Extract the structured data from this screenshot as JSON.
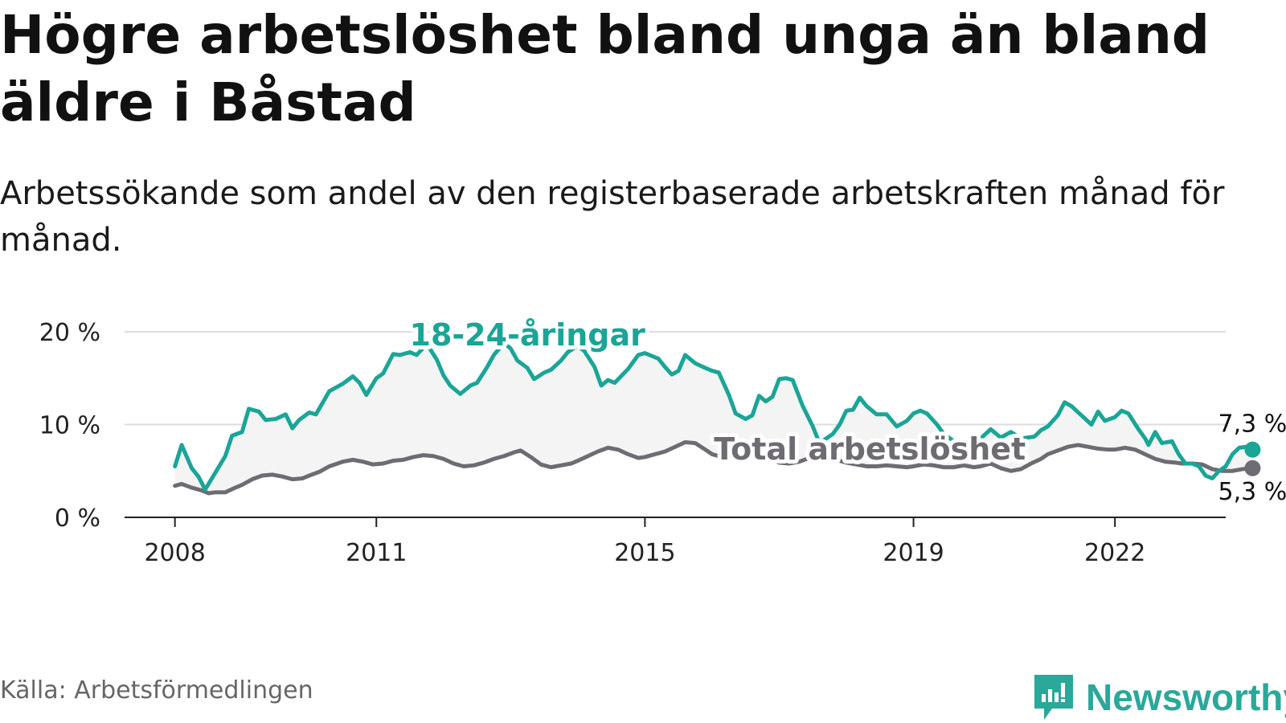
{
  "title": "Högre arbetslöshet bland unga än bland äldre i Båstad",
  "subtitle": "Arbetssökande som andel av den registerbaserade arbetskraften månad för månad.",
  "source": "Källa: Arbetsförmedlingen",
  "brand": {
    "name": "Newsworthy",
    "icon": "newsworthy-logo-icon",
    "color": "#2aa89a"
  },
  "chart_data": {
    "type": "line",
    "x_ticks": [
      {
        "value": 2008,
        "label": "2008"
      },
      {
        "value": 2011,
        "label": "2011"
      },
      {
        "value": 2015,
        "label": "2015"
      },
      {
        "value": 2019,
        "label": "2019"
      },
      {
        "value": 2022,
        "label": "2022"
      }
    ],
    "y_ticks": [
      {
        "value": 0,
        "label": "0 %"
      },
      {
        "value": 10,
        "label": "10 %"
      },
      {
        "value": 20,
        "label": "20 %"
      }
    ],
    "xlim": [
      2007.25,
      2023.65
    ],
    "ylim": [
      0,
      20
    ],
    "grid": true,
    "series": [
      {
        "name": "18-24-åringar",
        "label": "18-24-åringar",
        "color": "#1aa597",
        "end_label": "7,3 %",
        "points": [
          [
            2008.0,
            5.5
          ],
          [
            2008.1,
            7.8
          ],
          [
            2008.25,
            5.3
          ],
          [
            2008.35,
            4.4
          ],
          [
            2008.45,
            3.0
          ],
          [
            2008.6,
            4.8
          ],
          [
            2008.75,
            6.6
          ],
          [
            2008.85,
            8.8
          ],
          [
            2009.0,
            9.2
          ],
          [
            2009.1,
            11.7
          ],
          [
            2009.25,
            11.4
          ],
          [
            2009.35,
            10.5
          ],
          [
            2009.5,
            10.6
          ],
          [
            2009.65,
            11.1
          ],
          [
            2009.75,
            9.6
          ],
          [
            2009.85,
            10.5
          ],
          [
            2010.0,
            11.3
          ],
          [
            2010.1,
            11.1
          ],
          [
            2010.3,
            13.6
          ],
          [
            2010.5,
            14.4
          ],
          [
            2010.65,
            15.2
          ],
          [
            2010.75,
            14.5
          ],
          [
            2010.85,
            13.2
          ],
          [
            2011.0,
            15.0
          ],
          [
            2011.1,
            15.5
          ],
          [
            2011.25,
            17.6
          ],
          [
            2011.35,
            17.5
          ],
          [
            2011.5,
            17.8
          ],
          [
            2011.6,
            17.5
          ],
          [
            2011.75,
            18.7
          ],
          [
            2011.9,
            17.0
          ],
          [
            2012.0,
            15.3
          ],
          [
            2012.1,
            14.2
          ],
          [
            2012.25,
            13.3
          ],
          [
            2012.4,
            14.2
          ],
          [
            2012.5,
            14.5
          ],
          [
            2012.65,
            16.2
          ],
          [
            2012.75,
            17.5
          ],
          [
            2012.9,
            18.8
          ],
          [
            2013.0,
            18.2
          ],
          [
            2013.1,
            16.9
          ],
          [
            2013.25,
            16.1
          ],
          [
            2013.35,
            14.9
          ],
          [
            2013.5,
            15.6
          ],
          [
            2013.6,
            15.9
          ],
          [
            2013.75,
            16.9
          ],
          [
            2013.85,
            17.8
          ],
          [
            2014.0,
            18.5
          ],
          [
            2014.1,
            17.9
          ],
          [
            2014.25,
            16.2
          ],
          [
            2014.35,
            14.2
          ],
          [
            2014.45,
            14.8
          ],
          [
            2014.55,
            14.5
          ],
          [
            2014.75,
            16.0
          ],
          [
            2014.9,
            17.5
          ],
          [
            2015.0,
            17.7
          ],
          [
            2015.2,
            17.1
          ],
          [
            2015.3,
            16.2
          ],
          [
            2015.4,
            15.4
          ],
          [
            2015.5,
            15.8
          ],
          [
            2015.6,
            17.5
          ],
          [
            2015.75,
            16.6
          ],
          [
            2015.9,
            16.1
          ],
          [
            2016.0,
            15.8
          ],
          [
            2016.1,
            15.6
          ],
          [
            2016.25,
            13.2
          ],
          [
            2016.35,
            11.2
          ],
          [
            2016.5,
            10.6
          ],
          [
            2016.6,
            11.0
          ],
          [
            2016.7,
            13.1
          ],
          [
            2016.8,
            12.5
          ],
          [
            2016.9,
            13.0
          ],
          [
            2017.0,
            14.9
          ],
          [
            2017.1,
            15.0
          ],
          [
            2017.2,
            14.8
          ],
          [
            2017.35,
            12.0
          ],
          [
            2017.5,
            9.8
          ],
          [
            2017.6,
            8.0
          ],
          [
            2017.7,
            8.5
          ],
          [
            2017.8,
            9.0
          ],
          [
            2017.9,
            10.0
          ],
          [
            2018.0,
            11.5
          ],
          [
            2018.1,
            11.6
          ],
          [
            2018.2,
            12.9
          ],
          [
            2018.3,
            12.0
          ],
          [
            2018.45,
            11.1
          ],
          [
            2018.6,
            11.1
          ],
          [
            2018.75,
            9.8
          ],
          [
            2018.9,
            10.4
          ],
          [
            2019.0,
            11.2
          ],
          [
            2019.1,
            11.5
          ],
          [
            2019.2,
            11.2
          ],
          [
            2019.35,
            10.0
          ],
          [
            2019.45,
            9.0
          ],
          [
            2019.6,
            8.2
          ],
          [
            2019.75,
            7.8
          ],
          [
            2019.9,
            8.2
          ],
          [
            2020.0,
            8.5
          ],
          [
            2020.15,
            9.5
          ],
          [
            2020.3,
            8.6
          ],
          [
            2020.45,
            9.2
          ],
          [
            2020.6,
            8.5
          ],
          [
            2020.8,
            8.7
          ],
          [
            2020.9,
            9.4
          ],
          [
            2021.0,
            9.8
          ],
          [
            2021.15,
            11.0
          ],
          [
            2021.25,
            12.4
          ],
          [
            2021.35,
            12.0
          ],
          [
            2021.5,
            11.0
          ],
          [
            2021.65,
            10.0
          ],
          [
            2021.75,
            11.4
          ],
          [
            2021.85,
            10.4
          ],
          [
            2022.0,
            10.8
          ],
          [
            2022.1,
            11.5
          ],
          [
            2022.2,
            11.2
          ],
          [
            2022.35,
            9.5
          ],
          [
            2022.45,
            8.5
          ],
          [
            2022.5,
            7.8
          ],
          [
            2022.6,
            9.2
          ],
          [
            2022.7,
            8.0
          ],
          [
            2022.85,
            8.2
          ],
          [
            2022.95,
            6.8
          ],
          [
            2023.05,
            5.8
          ],
          [
            2023.15,
            5.8
          ],
          [
            2023.25,
            5.5
          ],
          [
            2023.35,
            4.5
          ],
          [
            2023.45,
            4.2
          ],
          [
            2023.55,
            5.0
          ],
          [
            2023.65,
            5.5
          ],
          [
            2023.75,
            6.8
          ],
          [
            2023.85,
            7.5
          ],
          [
            2023.95,
            7.6
          ],
          [
            2024.05,
            7.3
          ]
        ]
      },
      {
        "name": "Total arbetslöshet",
        "label": "Total arbetslöshet",
        "color": "#6e6b72",
        "end_label": "5,3 %",
        "points": [
          [
            2008.0,
            3.4
          ],
          [
            2008.1,
            3.6
          ],
          [
            2008.25,
            3.2
          ],
          [
            2008.4,
            2.9
          ],
          [
            2008.5,
            2.6
          ],
          [
            2008.6,
            2.7
          ],
          [
            2008.75,
            2.7
          ],
          [
            2008.9,
            3.2
          ],
          [
            2009.0,
            3.5
          ],
          [
            2009.15,
            4.1
          ],
          [
            2009.3,
            4.5
          ],
          [
            2009.45,
            4.6
          ],
          [
            2009.6,
            4.4
          ],
          [
            2009.75,
            4.1
          ],
          [
            2009.9,
            4.2
          ],
          [
            2010.0,
            4.5
          ],
          [
            2010.15,
            4.9
          ],
          [
            2010.3,
            5.5
          ],
          [
            2010.5,
            6.0
          ],
          [
            2010.65,
            6.2
          ],
          [
            2010.8,
            6.0
          ],
          [
            2010.95,
            5.7
          ],
          [
            2011.1,
            5.8
          ],
          [
            2011.25,
            6.1
          ],
          [
            2011.4,
            6.2
          ],
          [
            2011.55,
            6.5
          ],
          [
            2011.7,
            6.7
          ],
          [
            2011.85,
            6.6
          ],
          [
            2012.0,
            6.3
          ],
          [
            2012.15,
            5.8
          ],
          [
            2012.3,
            5.5
          ],
          [
            2012.45,
            5.6
          ],
          [
            2012.6,
            5.9
          ],
          [
            2012.75,
            6.3
          ],
          [
            2012.9,
            6.6
          ],
          [
            2013.05,
            7.0
          ],
          [
            2013.15,
            7.2
          ],
          [
            2013.3,
            6.5
          ],
          [
            2013.45,
            5.7
          ],
          [
            2013.6,
            5.4
          ],
          [
            2013.75,
            5.6
          ],
          [
            2013.9,
            5.8
          ],
          [
            2014.0,
            6.1
          ],
          [
            2014.15,
            6.6
          ],
          [
            2014.3,
            7.1
          ],
          [
            2014.45,
            7.5
          ],
          [
            2014.6,
            7.3
          ],
          [
            2014.75,
            6.8
          ],
          [
            2014.9,
            6.4
          ],
          [
            2015.0,
            6.5
          ],
          [
            2015.15,
            6.8
          ],
          [
            2015.3,
            7.1
          ],
          [
            2015.45,
            7.6
          ],
          [
            2015.6,
            8.1
          ],
          [
            2015.75,
            8.0
          ],
          [
            2015.9,
            7.3
          ],
          [
            2016.0,
            6.8
          ],
          [
            2016.15,
            6.5
          ],
          [
            2016.3,
            6.6
          ],
          [
            2016.45,
            7.0
          ],
          [
            2016.6,
            7.3
          ],
          [
            2016.75,
            6.8
          ],
          [
            2016.9,
            6.2
          ],
          [
            2017.0,
            5.9
          ],
          [
            2017.15,
            5.8
          ],
          [
            2017.3,
            6.0
          ],
          [
            2017.45,
            6.4
          ],
          [
            2017.6,
            6.8
          ],
          [
            2017.75,
            6.4
          ],
          [
            2017.9,
            6.1
          ],
          [
            2018.0,
            5.9
          ],
          [
            2018.15,
            5.7
          ],
          [
            2018.3,
            5.5
          ],
          [
            2018.45,
            5.5
          ],
          [
            2018.6,
            5.6
          ],
          [
            2018.75,
            5.5
          ],
          [
            2018.9,
            5.4
          ],
          [
            2019.0,
            5.5
          ],
          [
            2019.15,
            5.7
          ],
          [
            2019.3,
            5.6
          ],
          [
            2019.45,
            5.4
          ],
          [
            2019.6,
            5.4
          ],
          [
            2019.75,
            5.6
          ],
          [
            2019.9,
            5.4
          ],
          [
            2020.0,
            5.5
          ],
          [
            2020.15,
            5.8
          ],
          [
            2020.3,
            5.3
          ],
          [
            2020.45,
            5.0
          ],
          [
            2020.6,
            5.2
          ],
          [
            2020.75,
            5.8
          ],
          [
            2020.9,
            6.3
          ],
          [
            2021.0,
            6.8
          ],
          [
            2021.15,
            7.2
          ],
          [
            2021.3,
            7.6
          ],
          [
            2021.45,
            7.8
          ],
          [
            2021.6,
            7.6
          ],
          [
            2021.75,
            7.4
          ],
          [
            2021.9,
            7.3
          ],
          [
            2022.0,
            7.3
          ],
          [
            2022.15,
            7.5
          ],
          [
            2022.3,
            7.3
          ],
          [
            2022.45,
            6.8
          ],
          [
            2022.6,
            6.3
          ],
          [
            2022.75,
            6.0
          ],
          [
            2022.9,
            5.9
          ],
          [
            2023.0,
            5.8
          ],
          [
            2023.15,
            5.8
          ],
          [
            2023.3,
            5.7
          ],
          [
            2023.45,
            5.2
          ],
          [
            2023.6,
            5.0
          ],
          [
            2023.75,
            5.0
          ],
          [
            2023.9,
            5.2
          ],
          [
            2024.05,
            5.3
          ]
        ]
      }
    ]
  }
}
